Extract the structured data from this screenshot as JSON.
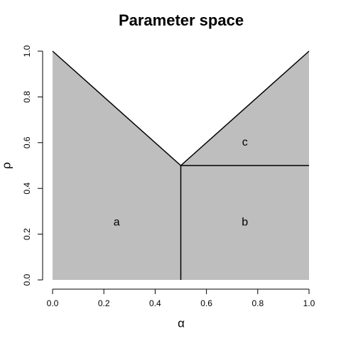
{
  "chart_data": {
    "type": "region",
    "title": "Parameter space",
    "xlabel": "α",
    "ylabel": "ρ",
    "xlim": [
      0,
      1
    ],
    "ylim": [
      0,
      1
    ],
    "xticks": [
      {
        "value": 0,
        "label": "0.0"
      },
      0.2,
      0.4,
      0.6,
      0.8,
      {
        "value": 1,
        "label": "1.0"
      }
    ],
    "yticks": [
      {
        "value": 0,
        "label": "0.0"
      },
      0.2,
      0.4,
      0.6,
      0.8,
      {
        "value": 1,
        "label": "1.0"
      }
    ],
    "fill": "#bebebe",
    "line_color": "#000000",
    "region": {
      "x": [
        0,
        0,
        0.5,
        1,
        1
      ],
      "y": [
        0,
        1,
        0.5,
        1,
        0
      ]
    },
    "segments": [
      {
        "x": [
          0,
          0.5,
          1
        ],
        "y": [
          1,
          0.5,
          1
        ]
      },
      {
        "x": [
          0.5,
          0.5
        ],
        "y": [
          0,
          0.5
        ]
      },
      {
        "x": [
          0.5,
          1
        ],
        "y": [
          0.5,
          0.5
        ]
      }
    ],
    "annotations": [
      {
        "text": "a",
        "x": 0.25,
        "y": 0.25
      },
      {
        "text": "b",
        "x": 0.75,
        "y": 0.25
      },
      {
        "text": "c",
        "x": 0.75,
        "y": 0.6
      }
    ]
  }
}
